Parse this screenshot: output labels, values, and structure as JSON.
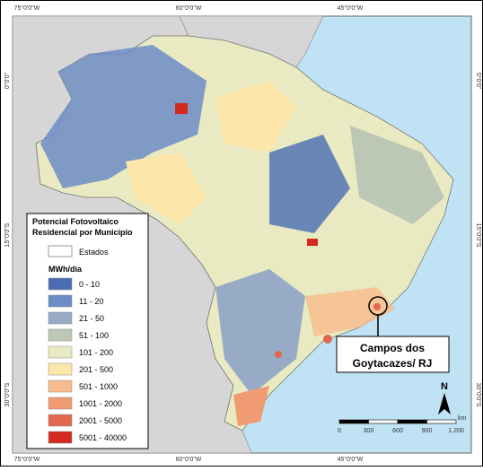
{
  "graticule": {
    "top": [
      "75°0'0\"W",
      "60°0'0\"W",
      "45°0'0\"W"
    ],
    "bottom": [
      "75°0'0\"W",
      "60°0'0\"W",
      "45°0'0\"W"
    ],
    "left": [
      "0°0'0\"",
      "15°0'0\"S",
      "30°0'0\"S"
    ],
    "right": [
      "0°0'0\"",
      "15°0'0\"S",
      "30°0'0\"S"
    ]
  },
  "legend": {
    "title": [
      "Potencial Fotovoltaico",
      "Residencial por Município"
    ],
    "states_label": "Estados",
    "unit": "MWh/dia",
    "items": [
      {
        "label": "0 - 10",
        "color": "#4a6db3"
      },
      {
        "label": "11 - 20",
        "color": "#6c8cc5"
      },
      {
        "label": "21 - 50",
        "color": "#98abc6"
      },
      {
        "label": "51 - 100",
        "color": "#bcc7b6"
      },
      {
        "label": "101 - 200",
        "color": "#e9eac2"
      },
      {
        "label": "201 - 500",
        "color": "#fde6a9"
      },
      {
        "label": "501 - 1000",
        "color": "#f8bb8b"
      },
      {
        "label": "1001 - 2000",
        "color": "#f19b73"
      },
      {
        "label": "2001 - 5000",
        "color": "#e3684e"
      },
      {
        "label": "5001 - 40000",
        "color": "#d32a20"
      }
    ]
  },
  "callout": [
    "Campos dos",
    "Goytacazes/ RJ"
  ],
  "north": "N",
  "scale": {
    "labels": [
      "0",
      "300",
      "600",
      "900",
      "1.200"
    ],
    "unit": "km"
  }
}
